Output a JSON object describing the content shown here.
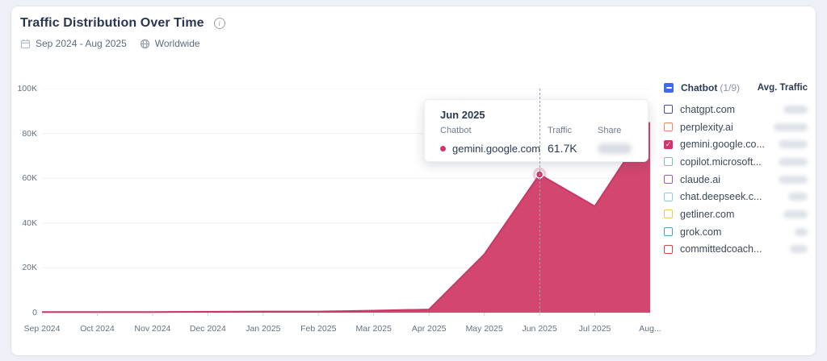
{
  "header": {
    "title": "Traffic Distribution Over Time",
    "date_range": "Sep 2024 - Aug 2025",
    "region": "Worldwide"
  },
  "chart_data": {
    "type": "area",
    "title": "Traffic Distribution Over Time",
    "x": [
      "Sep 2024",
      "Oct 2024",
      "Nov 2024",
      "Dec 2024",
      "Jan 2025",
      "Feb 2025",
      "Mar 2025",
      "Apr 2025",
      "May 2025",
      "Jun 2025",
      "Jul 2025",
      "Aug 2025"
    ],
    "x_tick_labels": [
      "Sep 2024",
      "Oct 2024",
      "Nov 2024",
      "Dec 2024",
      "Jan 2025",
      "Feb 2025",
      "Mar 2025",
      "Apr 2025",
      "May 2025",
      "Jun 2025",
      "Jul 2025",
      "Aug..."
    ],
    "y_ticks": [
      "0",
      "20K",
      "40K",
      "60K",
      "80K",
      "100K"
    ],
    "ylim": [
      0,
      100000
    ],
    "grid": true,
    "legend_position": "right",
    "series": [
      {
        "name": "gemini.google.com",
        "fill_color": "#d2466f",
        "line_color": "#c93767",
        "values": [
          300,
          300,
          300,
          400,
          500,
          500,
          900,
          1400,
          26000,
          61700,
          47500,
          85000
        ]
      }
    ],
    "highlight": {
      "index": 9,
      "label": "Jun 2025",
      "value": 61700,
      "value_label": "61.7K"
    }
  },
  "tooltip": {
    "title": "Jun 2025",
    "columns": [
      "Chatbot",
      "Traffic",
      "Share"
    ],
    "row": {
      "chatbot": "gemini.google.com",
      "traffic": "61.7K",
      "share_blurred": true
    },
    "dot_color": "#d6336c"
  },
  "legend": {
    "header": {
      "label": "Chatbot",
      "count": "(1/9)",
      "value_header": "Avg. Traffic",
      "checkbox_color": "#3f6af0"
    },
    "values_blurred": true,
    "items": [
      {
        "label": "chatgpt.com",
        "color": "#44508c",
        "checked": false
      },
      {
        "label": "perplexity.ai",
        "color": "#ef8a60",
        "checked": false
      },
      {
        "label": "gemini.google.co...",
        "color": "#d6336c",
        "checked": true
      },
      {
        "label": "copilot.microsoft...",
        "color": "#5fd0a0",
        "checked": false
      },
      {
        "label": "claude.ai",
        "color": "#a156c8",
        "checked": false
      },
      {
        "label": "chat.deepseek.c...",
        "color": "#85cdee",
        "checked": false
      },
      {
        "label": "getliner.com",
        "color": "#f2c266",
        "checked": false
      },
      {
        "label": "grok.com",
        "color": "#4b9dc9",
        "checked": false
      },
      {
        "label": "committedcoach...",
        "color": "#cd4a43",
        "checked": false
      }
    ]
  }
}
